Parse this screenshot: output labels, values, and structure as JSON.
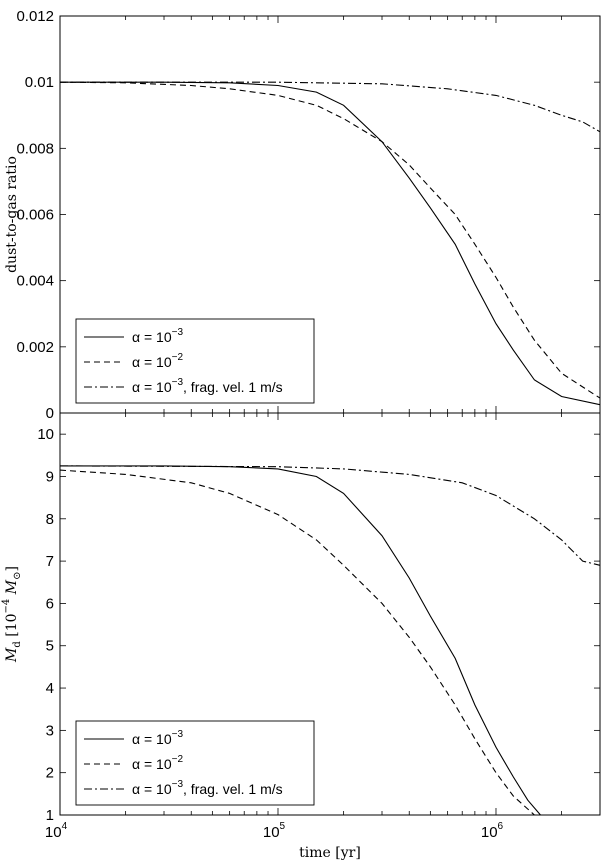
{
  "chart_data": [
    {
      "type": "line",
      "ylabel": "dust-to-gas ratio",
      "xlabel": "",
      "xscale": "log",
      "xlim": [
        10000,
        3000000
      ],
      "ylim": [
        0,
        0.012
      ],
      "yticks": [
        0,
        0.002,
        0.004,
        0.006,
        0.008,
        0.01,
        0.012
      ],
      "ytick_labels": [
        "0",
        "0.002",
        "0.004",
        "0.006",
        "0.008",
        "0.01",
        "0.012"
      ],
      "legend_position": "bottom-left",
      "series": [
        {
          "name": "α = 10^-3",
          "label_base": "α = 10",
          "label_exp": "−3",
          "label_suffix": "",
          "dash": "",
          "x": [
            10000,
            30000,
            60000,
            100000,
            150000,
            200000,
            300000,
            400000,
            500000,
            650000,
            800000,
            1000000,
            1200000,
            1500000,
            2000000,
            3000000
          ],
          "y": [
            0.01,
            0.01,
            0.00998,
            0.0099,
            0.0097,
            0.0093,
            0.0082,
            0.0071,
            0.0062,
            0.0051,
            0.0039,
            0.0027,
            0.0019,
            0.001,
            0.0005,
            0.00025
          ]
        },
        {
          "name": "α = 10^-2",
          "label_base": "α = 10",
          "label_exp": "−2",
          "label_suffix": "",
          "dash": "6 4",
          "x": [
            10000,
            20000,
            40000,
            60000,
            100000,
            150000,
            200000,
            300000,
            400000,
            500000,
            650000,
            800000,
            1000000,
            1200000,
            1500000,
            2000000,
            3000000
          ],
          "y": [
            0.01,
            0.00998,
            0.0099,
            0.0098,
            0.0096,
            0.0093,
            0.0089,
            0.0082,
            0.0075,
            0.0068,
            0.006,
            0.0051,
            0.0041,
            0.0032,
            0.0022,
            0.0012,
            0.00045
          ]
        },
        {
          "name": "α = 10^-3, frag. vel. 1 m/s",
          "label_base": "α = 10",
          "label_exp": "−3",
          "label_suffix": ", frag. vel. 1 m/s",
          "dash": "8 3 2 3",
          "x": [
            10000,
            100000,
            300000,
            600000,
            1000000,
            1500000,
            2000000,
            2500000,
            3000000
          ],
          "y": [
            0.01,
            0.01,
            0.00995,
            0.0098,
            0.0096,
            0.0093,
            0.009,
            0.0088,
            0.0085
          ]
        }
      ]
    },
    {
      "type": "line",
      "ylabel_main": "M",
      "ylabel_sub": "d",
      "ylabel_rest": " [10",
      "ylabel_exp": "−4",
      "ylabel_unit": " M",
      "ylabel_unit_sub": "⊙",
      "ylabel_close": "]",
      "xlabel": "time [yr]",
      "xscale": "log",
      "xlim": [
        10000,
        3000000
      ],
      "ylim": [
        1,
        10.5
      ],
      "yticks": [
        1,
        2,
        3,
        4,
        5,
        6,
        7,
        8,
        9,
        10
      ],
      "ytick_labels": [
        "1",
        "2",
        "3",
        "4",
        "5",
        "6",
        "7",
        "8",
        "9",
        "10"
      ],
      "xtick_labels": [
        {
          "base": "10",
          "exp": "4",
          "value": 10000
        },
        {
          "base": "10",
          "exp": "5",
          "value": 100000
        },
        {
          "base": "10",
          "exp": "6",
          "value": 1000000
        }
      ],
      "legend_position": "bottom-left",
      "series": [
        {
          "name": "α = 10^-3",
          "label_base": "α = 10",
          "label_exp": "−3",
          "label_suffix": "",
          "dash": "",
          "x": [
            10000,
            30000,
            60000,
            100000,
            150000,
            200000,
            300000,
            400000,
            500000,
            650000,
            800000,
            1000000,
            1200000,
            1400000,
            1600000
          ],
          "y": [
            9.25,
            9.25,
            9.23,
            9.18,
            9.0,
            8.6,
            7.6,
            6.6,
            5.7,
            4.7,
            3.6,
            2.6,
            1.9,
            1.35,
            1.0
          ]
        },
        {
          "name": "α = 10^-2",
          "label_base": "α = 10",
          "label_exp": "−2",
          "label_suffix": "",
          "dash": "6 4",
          "x": [
            10000,
            20000,
            40000,
            60000,
            100000,
            150000,
            200000,
            300000,
            400000,
            500000,
            650000,
            800000,
            1000000,
            1200000,
            1500000
          ],
          "y": [
            9.15,
            9.05,
            8.85,
            8.6,
            8.1,
            7.5,
            6.9,
            6.0,
            5.2,
            4.5,
            3.6,
            2.8,
            2.0,
            1.45,
            1.0
          ]
        },
        {
          "name": "α = 10^-3, frag. vel. 1 m/s",
          "label_base": "α = 10",
          "label_exp": "−3",
          "label_suffix": ", frag. vel. 1 m/s",
          "dash": "8 3 2 3",
          "x": [
            10000,
            100000,
            200000,
            400000,
            700000,
            1000000,
            1500000,
            2000000,
            2500000,
            3000000
          ],
          "y": [
            9.25,
            9.23,
            9.18,
            9.05,
            8.85,
            8.55,
            8.0,
            7.5,
            7.0,
            6.9
          ]
        }
      ]
    }
  ]
}
